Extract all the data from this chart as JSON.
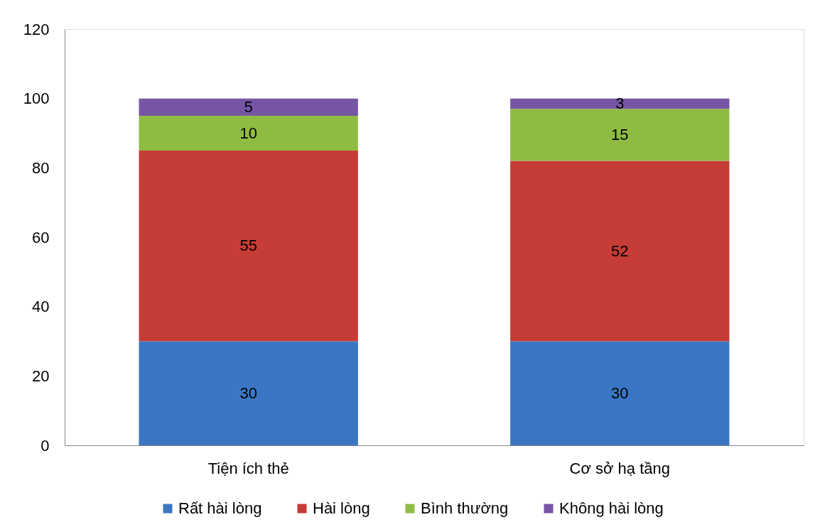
{
  "chart_data": {
    "type": "bar",
    "stacked": true,
    "categories": [
      "Tiện ích thẻ",
      "Cơ sở hạ tầng"
    ],
    "series": [
      {
        "name": "Rất hài lòng",
        "color": "#3a76c4",
        "values": [
          30,
          30
        ]
      },
      {
        "name": "Hài lòng",
        "color": "#c63c36",
        "values": [
          55,
          52
        ]
      },
      {
        "name": "Bình thường",
        "color": "#8fbb43",
        "values": [
          10,
          15
        ]
      },
      {
        "name": "Không hài lòng",
        "color": "#7755a5",
        "values": [
          5,
          3
        ]
      }
    ],
    "ylim": [
      0,
      120
    ],
    "yticks": [
      0,
      20,
      40,
      60,
      80,
      100,
      120
    ],
    "data_labels": true,
    "legend": "bottom",
    "grid": false
  }
}
